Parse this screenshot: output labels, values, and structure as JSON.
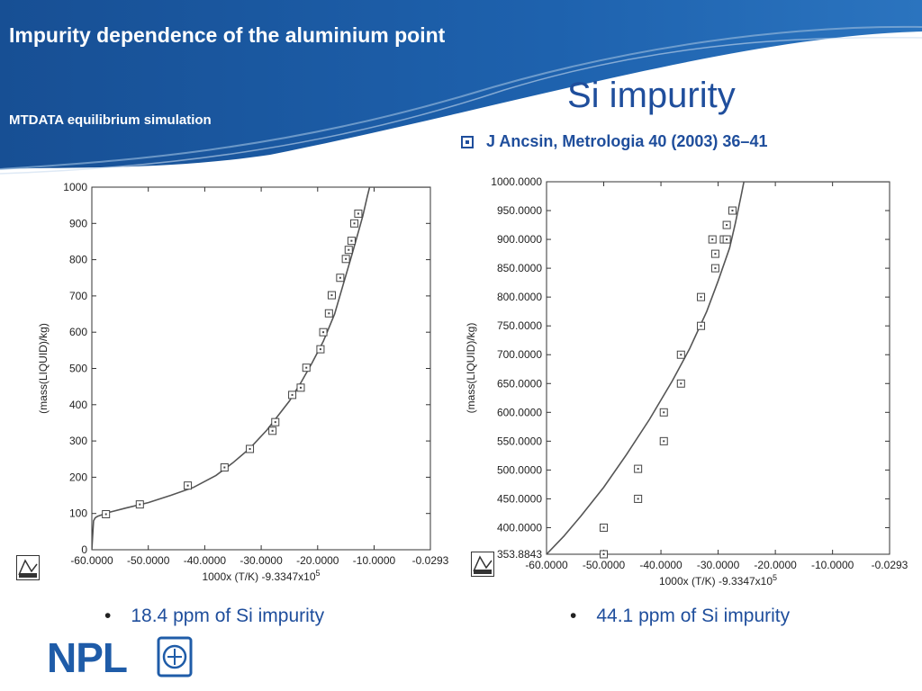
{
  "header": {
    "title": "Impurity dependence of the aluminium point",
    "subtitle": "MTDATA equilibrium simulation"
  },
  "slide_title": "Si impurity",
  "reference": "J Ancsin, Metrologia 40 (2003) 36–41",
  "bullets": [
    "18.4 ppm of Si impurity",
    "44.1 ppm of Si impurity"
  ],
  "logos": {
    "npl": "NPL",
    "mtdata": "MTDATA"
  },
  "colors": {
    "accent": "#1f4e9c",
    "banner": "#1d5fa8",
    "curve": "#555555"
  },
  "chart_data": [
    {
      "type": "scatter",
      "xlabel": "1000x (T/K) -9.3347x10",
      "xlabel_exp": "5",
      "ylabel": "(mass(LIQUID)/kg)",
      "xlim": [
        -60,
        -0.0293
      ],
      "ylim": [
        0,
        1000
      ],
      "xticks": [
        -60,
        -50,
        -40,
        -30,
        -20,
        -10,
        -0.0293
      ],
      "xtick_labels": [
        "-60.0000",
        "-50.0000",
        "-40.0000",
        "-30.0000",
        "-20.0000",
        "-10.0000",
        "-0.0293"
      ],
      "yticks": [
        0,
        100,
        200,
        300,
        400,
        500,
        600,
        700,
        800,
        900,
        1000
      ],
      "ytick_labels": [
        "0",
        "100",
        "200",
        "300",
        "400",
        "500",
        "600",
        "700",
        "800",
        "900",
        "1000"
      ],
      "grid": false,
      "series": [
        {
          "kind": "line",
          "x": [
            -60,
            -59.7,
            -59.4,
            -59,
            -57,
            -54,
            -50,
            -46,
            -42,
            -38,
            -35,
            -32,
            -29,
            -27,
            -25,
            -23,
            -21,
            -19,
            -17,
            -15.5,
            -14,
            -13,
            -12,
            -11.2,
            -10.8,
            -10.2,
            -6,
            -0.0293
          ],
          "y": [
            0,
            80,
            88,
            92,
            103,
            115,
            130,
            150,
            172,
            205,
            240,
            280,
            330,
            370,
            410,
            460,
            515,
            575,
            650,
            730,
            810,
            865,
            920,
            975,
            1000,
            1000,
            1000,
            1000
          ]
        },
        {
          "kind": "points",
          "x": [
            -57.5,
            -51.5,
            -43,
            -36.5,
            -32,
            -28,
            -27.5,
            -24.5,
            -23,
            -22,
            -19.5,
            -19,
            -18,
            -17.5,
            -16,
            -15,
            -14.5,
            -14,
            -13.5,
            -12.8
          ],
          "y": [
            98,
            125,
            177,
            227,
            278,
            328,
            352,
            427,
            447,
            502,
            553,
            600,
            652,
            702,
            750,
            802,
            827,
            852,
            900,
            927
          ]
        }
      ]
    },
    {
      "type": "scatter",
      "xlabel": "1000x (T/K) -9.3347x10",
      "xlabel_exp": "5",
      "ylabel": "(mass(LIQUID)/kg)",
      "xlim": [
        -60,
        -0.0293
      ],
      "ylim": [
        353.8843,
        1000
      ],
      "xticks": [
        -60,
        -50,
        -40,
        -30,
        -20,
        -10,
        -0.0293
      ],
      "xtick_labels": [
        "-60.0000",
        "-50.0000",
        "-40.0000",
        "-30.0000",
        "-20.0000",
        "-10.0000",
        "-0.0293"
      ],
      "yticks": [
        353.8843,
        400,
        450,
        500,
        550,
        600,
        650,
        700,
        750,
        800,
        850,
        900,
        950,
        1000
      ],
      "ytick_labels": [
        "353.8843",
        "400.0000",
        "450.0000",
        "500.0000",
        "550.0000",
        "600.0000",
        "650.0000",
        "700.0000",
        "750.0000",
        "800.0000",
        "850.0000",
        "900.0000",
        "950.0000",
        "1000.0000"
      ],
      "grid": false,
      "series": [
        {
          "kind": "line",
          "x": [
            -60,
            -57,
            -54,
            -50,
            -46,
            -42,
            -38,
            -35,
            -32,
            -30,
            -28,
            -27,
            -26,
            -25.5,
            -24,
            -15,
            -0.0293
          ],
          "y": [
            353.8843,
            385,
            420,
            470,
            527,
            588,
            655,
            710,
            775,
            828,
            885,
            928,
            975,
            1000,
            1000,
            1000,
            1000
          ]
        },
        {
          "kind": "points",
          "x": [
            -50,
            -50,
            -44,
            -44,
            -39.5,
            -39.5,
            -36.5,
            -36.5,
            -33,
            -33,
            -30.5,
            -30.5,
            -29,
            -31,
            -28.5,
            -28.5,
            -27.5
          ],
          "y": [
            353.8843,
            400,
            450,
            502,
            550,
            600,
            650,
            700,
            750,
            800,
            850,
            875,
            900,
            900,
            925,
            900,
            950
          ]
        }
      ]
    }
  ]
}
